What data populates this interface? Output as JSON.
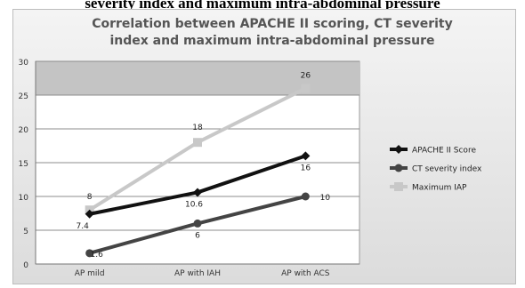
{
  "caption": "severity index and maximum intra-abdominal pressure",
  "chart_data": {
    "type": "line",
    "title_lines": [
      "Correlation between APACHE II scoring, CT severity",
      "index and maximum intra-abdominal pressure"
    ],
    "categories": [
      "AP mild",
      "AP with IAH",
      "AP with ACS"
    ],
    "yticks": [
      "0",
      "5",
      "10",
      "15",
      "20",
      "25",
      "30"
    ],
    "ylim": [
      0,
      30
    ],
    "series": [
      {
        "name": "APACHE II Score",
        "values": [
          7.4,
          10.6,
          16
        ],
        "labels": [
          "7.4",
          "10.6",
          "16"
        ],
        "color": "#111111",
        "marker": "diamond"
      },
      {
        "name": "CT severity index",
        "values": [
          1.6,
          6,
          10
        ],
        "labels": [
          "1.6",
          "6",
          "10"
        ],
        "color": "#444444",
        "marker": "circle"
      },
      {
        "name": "Maximum IAP",
        "values": [
          8,
          18,
          26
        ],
        "labels": [
          "8",
          "18",
          "26"
        ],
        "color": "#c8c8c8",
        "marker": "square"
      }
    ],
    "legend": "right",
    "grid": true
  }
}
